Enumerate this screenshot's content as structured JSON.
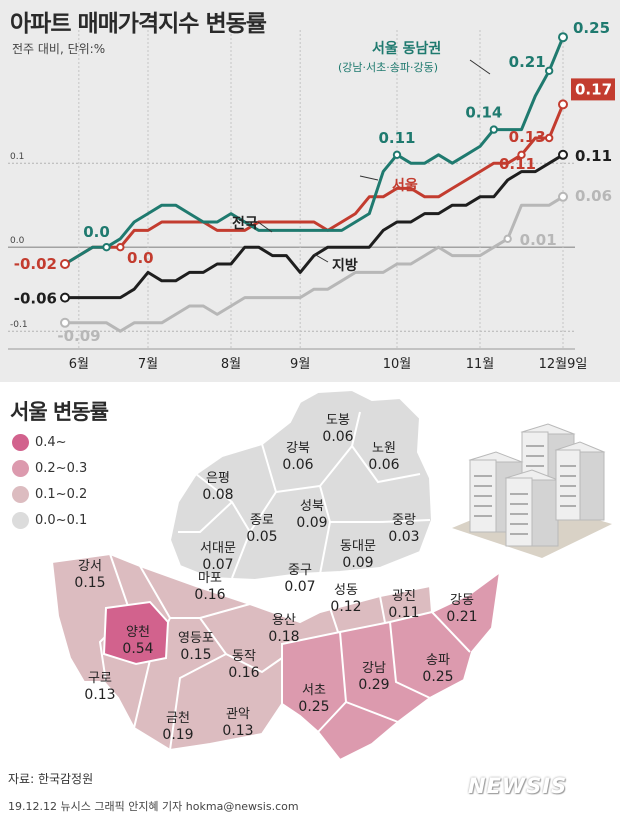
{
  "title": "아파트 매매가격지수 변동률",
  "subtitle": "전주 대비, 단위:%",
  "chart_data": {
    "type": "line",
    "title": "아파트 매매가격지수 변동률",
    "ylabel": "전주 대비, 단위:%",
    "ylim": [
      -0.12,
      0.28
    ],
    "ytick_labels": [
      "0.1",
      "0.0",
      "-0.1"
    ],
    "yticks": [
      0.1,
      0.0,
      -0.1
    ],
    "x_labels": [
      "6월",
      "7월",
      "8월",
      "9월",
      "10월",
      "11월",
      "12월9일"
    ],
    "x_label_index": [
      1,
      6,
      12,
      17,
      24,
      30,
      36
    ],
    "series": [
      {
        "name": "서울 동남권",
        "subname": "(강남·서초·송파·강동)",
        "color": "#1f7a6f",
        "values": [
          -0.02,
          -0.01,
          0.0,
          0.0,
          0.01,
          0.03,
          0.04,
          0.05,
          0.05,
          0.04,
          0.03,
          0.03,
          0.04,
          0.03,
          0.02,
          0.02,
          0.02,
          0.02,
          0.02,
          0.02,
          0.02,
          0.03,
          0.04,
          0.09,
          0.11,
          0.1,
          0.1,
          0.11,
          0.1,
          0.11,
          0.12,
          0.14,
          0.14,
          0.14,
          0.18,
          0.21,
          0.25
        ]
      },
      {
        "name": "서울",
        "color": "#c33c2f",
        "values": [
          -0.02,
          -0.01,
          0.0,
          0.0,
          0.0,
          0.02,
          0.02,
          0.03,
          0.03,
          0.03,
          0.03,
          0.02,
          0.02,
          0.02,
          0.03,
          0.03,
          0.03,
          0.03,
          0.03,
          0.02,
          0.03,
          0.04,
          0.06,
          0.06,
          0.07,
          0.07,
          0.06,
          0.06,
          0.07,
          0.08,
          0.09,
          0.1,
          0.1,
          0.11,
          0.13,
          0.13,
          0.17
        ]
      },
      {
        "name": "전국",
        "color": "#1e1e1e",
        "values": [
          -0.06,
          -0.06,
          -0.06,
          -0.06,
          -0.06,
          -0.05,
          -0.03,
          -0.04,
          -0.04,
          -0.03,
          -0.03,
          -0.02,
          -0.02,
          0.0,
          0.0,
          -0.01,
          -0.01,
          -0.03,
          -0.01,
          0.0,
          0.0,
          0.0,
          0.0,
          0.02,
          0.03,
          0.03,
          0.04,
          0.04,
          0.05,
          0.05,
          0.06,
          0.06,
          0.08,
          0.09,
          0.09,
          0.1,
          0.11
        ]
      },
      {
        "name": "지방",
        "color": "#b7b7b7",
        "values": [
          -0.09,
          -0.09,
          -0.09,
          -0.09,
          -0.1,
          -0.09,
          -0.09,
          -0.09,
          -0.08,
          -0.07,
          -0.07,
          -0.08,
          -0.07,
          -0.06,
          -0.06,
          -0.06,
          -0.06,
          -0.06,
          -0.05,
          -0.05,
          -0.04,
          -0.03,
          -0.03,
          -0.03,
          -0.02,
          -0.02,
          -0.01,
          0.0,
          -0.01,
          -0.01,
          -0.01,
          0.0,
          0.01,
          0.05,
          0.05,
          0.05,
          0.06
        ]
      }
    ],
    "annotations": [
      {
        "series": 0,
        "index": 3,
        "text": "0.0"
      },
      {
        "series": 0,
        "index": 24,
        "text": "0.11"
      },
      {
        "series": 0,
        "index": 31,
        "text": "0.14"
      },
      {
        "series": 0,
        "index": 35,
        "text": "0.21"
      },
      {
        "series": 0,
        "index": 36,
        "text": "0.25"
      },
      {
        "series": 1,
        "index": 0,
        "text": "-0.02"
      },
      {
        "series": 1,
        "index": 4,
        "text": "0.0"
      },
      {
        "series": 1,
        "index": 33,
        "text": "0.11"
      },
      {
        "series": 1,
        "index": 35,
        "text": "0.13"
      },
      {
        "series": 1,
        "index": 36,
        "text": "0.17"
      },
      {
        "series": 2,
        "index": 0,
        "text": "-0.06"
      },
      {
        "series": 2,
        "index": 36,
        "text": "0.11"
      },
      {
        "series": 3,
        "index": 0,
        "text": "-0.09"
      },
      {
        "series": 3,
        "index": 32,
        "text": "0.01"
      },
      {
        "series": 3,
        "index": 36,
        "text": "0.06"
      }
    ]
  },
  "map": {
    "title": "서울 변동률",
    "legend": [
      {
        "label": "0.4~",
        "color": "#d2628d"
      },
      {
        "label": "0.2~0.3",
        "color": "#dc9aae"
      },
      {
        "label": "0.1~0.2",
        "color": "#dcbcc0"
      },
      {
        "label": "0.0~0.1",
        "color": "#dcdcdc"
      }
    ],
    "districts": [
      {
        "name": "도봉",
        "value": "0.06"
      },
      {
        "name": "강북",
        "value": "0.06"
      },
      {
        "name": "노원",
        "value": "0.06"
      },
      {
        "name": "은평",
        "value": "0.08"
      },
      {
        "name": "성북",
        "value": "0.09"
      },
      {
        "name": "종로",
        "value": "0.05"
      },
      {
        "name": "중랑",
        "value": "0.03"
      },
      {
        "name": "서대문",
        "value": "0.07"
      },
      {
        "name": "동대문",
        "value": "0.09"
      },
      {
        "name": "중구",
        "value": "0.07"
      },
      {
        "name": "강서",
        "value": "0.15"
      },
      {
        "name": "마포",
        "value": "0.16"
      },
      {
        "name": "성동",
        "value": "0.12"
      },
      {
        "name": "광진",
        "value": "0.11"
      },
      {
        "name": "용산",
        "value": "0.18"
      },
      {
        "name": "강동",
        "value": "0.21"
      },
      {
        "name": "양천",
        "value": "0.54"
      },
      {
        "name": "영등포",
        "value": "0.15"
      },
      {
        "name": "동작",
        "value": "0.16"
      },
      {
        "name": "구로",
        "value": "0.13"
      },
      {
        "name": "강남",
        "value": "0.29"
      },
      {
        "name": "송파",
        "value": "0.25"
      },
      {
        "name": "서초",
        "value": "0.25"
      },
      {
        "name": "금천",
        "value": "0.19"
      },
      {
        "name": "관악",
        "value": "0.13"
      }
    ]
  },
  "source": "자료: 한국감정원",
  "credit": "19.12.12  뉴시스 그래픽  안지혜 기자  hokma@newsis.com",
  "brand": "NEWSIS"
}
